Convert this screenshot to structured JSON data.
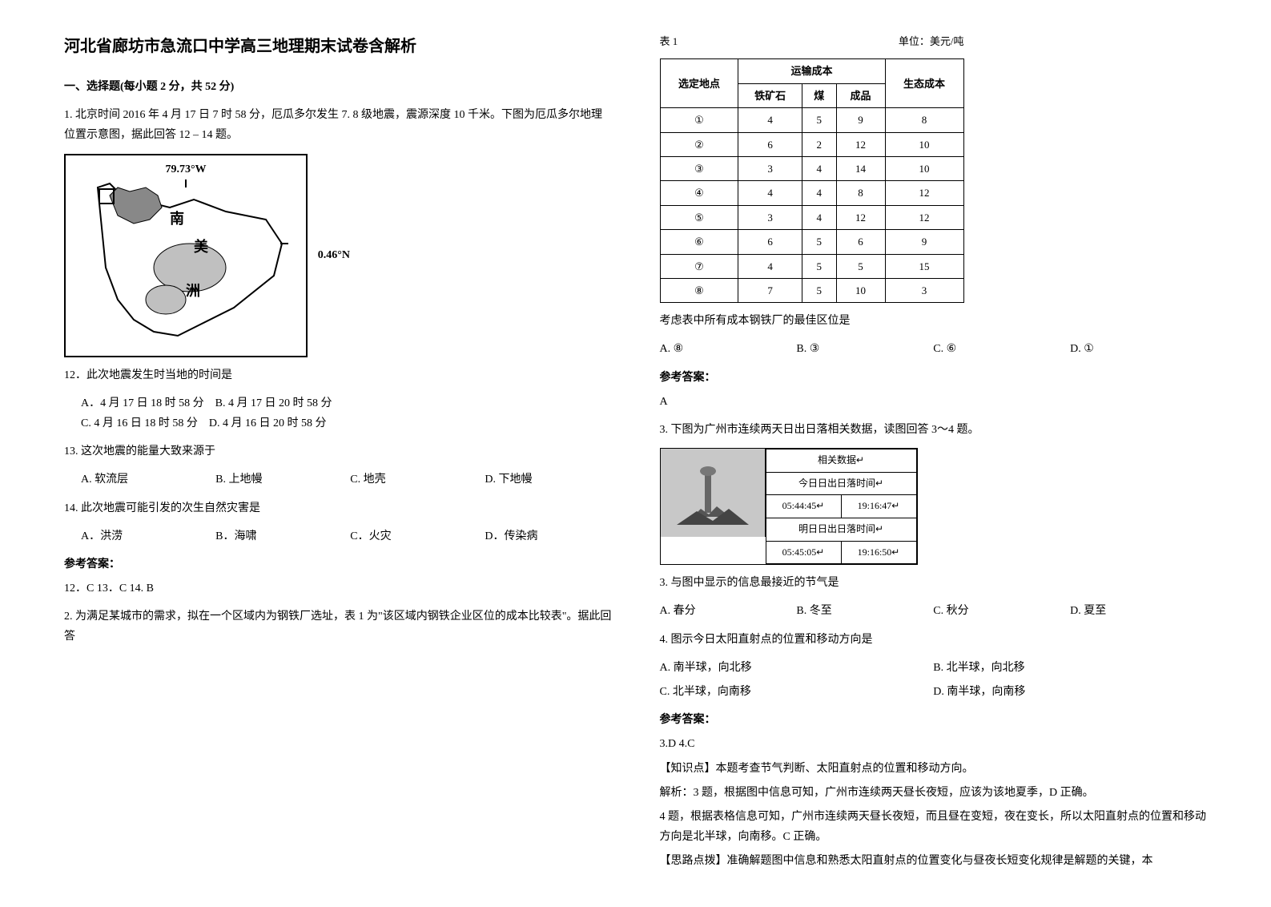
{
  "title": "河北省廊坊市急流口中学高三地理期末试卷含解析",
  "section1": {
    "header": "一、选择题(每小题 2 分，共 52 分)",
    "q1": {
      "stem": "1. 北京时间 2016 年 4 月 17 日 7 时 58 分，厄瓜多尔发生 7. 8 级地震，震源深度 10 千米。下图为厄瓜多尔地理位置示意图，据此回答 12 – 14 题。",
      "map": {
        "lon_label": "79.73°W",
        "lat_label": "0.46°N",
        "txt_nan": "南",
        "txt_mei": "美",
        "txt_zhou": "洲"
      },
      "q12": {
        "stem": "12．此次地震发生时当地的时间是",
        "a": "A．4 月 17 日 18 时 58 分",
        "b": "B. 4 月 17 日 20 时 58 分",
        "c": "C. 4 月 16 日 18 时 58 分",
        "d": "D. 4 月 16 日 20 时 58 分"
      },
      "q13": {
        "stem": "13. 这次地震的能量大致来源于",
        "a": "A. 软流层",
        "b": "B. 上地幔",
        "c": "C. 地壳",
        "d": "D. 下地幔"
      },
      "q14": {
        "stem": "14. 此次地震可能引发的次生自然灾害是",
        "a": "A．洪涝",
        "b": "B．海啸",
        "c": "C．火灾",
        "d": "D．传染病"
      },
      "answer_label": "参考答案：",
      "answer": "12．C  13．C   14. B"
    },
    "q2": {
      "stem": "2. 为满足某城市的需求，拟在一个区域内为钢铁厂选址，表 1 为\"该区域内钢铁企业区位的成本比较表\"。据此回答"
    }
  },
  "table1": {
    "title_left": "表 1",
    "title_right": "单位：美元/吨",
    "header_site": "选定地点",
    "header_transport": "运输成本",
    "header_iron": "铁矿石",
    "header_coal": "煤",
    "header_product": "成品",
    "header_eco": "生态成本",
    "rows": [
      {
        "site": "①",
        "iron": "4",
        "coal": "5",
        "product": "9",
        "eco": "8"
      },
      {
        "site": "②",
        "iron": "6",
        "coal": "2",
        "product": "12",
        "eco": "10"
      },
      {
        "site": "③",
        "iron": "3",
        "coal": "4",
        "product": "14",
        "eco": "10"
      },
      {
        "site": "④",
        "iron": "4",
        "coal": "4",
        "product": "8",
        "eco": "12"
      },
      {
        "site": "⑤",
        "iron": "3",
        "coal": "4",
        "product": "12",
        "eco": "12"
      },
      {
        "site": "⑥",
        "iron": "6",
        "coal": "5",
        "product": "6",
        "eco": "9"
      },
      {
        "site": "⑦",
        "iron": "4",
        "coal": "5",
        "product": "5",
        "eco": "15"
      },
      {
        "site": "⑧",
        "iron": "7",
        "coal": "5",
        "product": "10",
        "eco": "3"
      }
    ]
  },
  "q2_sub": {
    "stem": "考虑表中所有成本钢铁厂的最佳区位是",
    "a": "A. ⑧",
    "b": "B. ③",
    "c": "C. ⑥",
    "d": "D. ①",
    "answer_label": "参考答案：",
    "answer": "A"
  },
  "q3": {
    "stem": "3. 下图为广州市连续两天日出日落相关数据，读图回答 3～4 题。",
    "sunrise": {
      "header": "相关数据↵",
      "today_label": "今日日出日落时间↵",
      "today_rise": "05:44:45↵",
      "today_set": "19:16:47↵",
      "tomorrow_label": "明日日出日落时间↵",
      "tomorrow_rise": "05:45:05↵",
      "tomorrow_set": "19:16:50↵"
    },
    "q3_sub": {
      "stem": "3.  与图中显示的信息最接近的节气是",
      "a": "A. 春分",
      "b": "B. 冬至",
      "c": "C. 秋分",
      "d": "D. 夏至"
    },
    "q4_sub": {
      "stem": "4.  图示今日太阳直射点的位置和移动方向是",
      "a": "A. 南半球，向北移",
      "b": "B. 北半球，向北移",
      "c": "C. 北半球，向南移",
      "d": "D. 南半球，向南移"
    },
    "answer_label": "参考答案：",
    "answer": "3.D  4.C",
    "explain_label": "【知识点】本题考查节气判断、太阳直射点的位置和移动方向。",
    "explain1": "解析：3 题，根据图中信息可知，广州市连续两天昼长夜短，应该为该地夏季，D 正确。",
    "explain2": "4 题，根据表格信息可知，广州市连续两天昼长夜短，而且昼在变短，夜在变长，所以太阳直射点的位置和移动方向是北半球，向南移。C 正确。",
    "hint": "【思路点拨】准确解题图中信息和熟悉太阳直射点的位置变化与昼夜长短变化规律是解题的关键，本"
  }
}
